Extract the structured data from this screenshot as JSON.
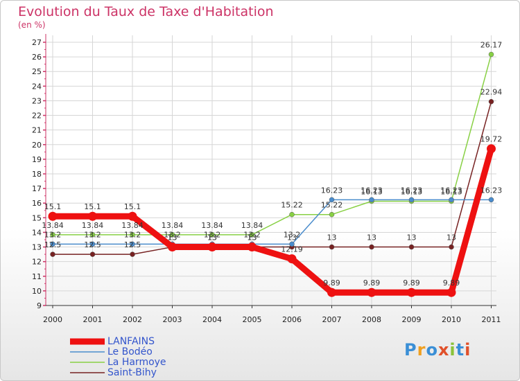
{
  "header": {
    "title": "Evolution du Taux de Taxe d'Habitation",
    "subtitle": "(en %)"
  },
  "chart_data": {
    "type": "line",
    "title": "Evolution du Taux de Taxe d'Habitation",
    "ylabel": "(en %)",
    "xlabel": "",
    "grid": true,
    "ylim": [
      9,
      27
    ],
    "y_ticks": [
      "9",
      "10",
      "11",
      "12",
      "13",
      "14",
      "15",
      "16",
      "17",
      "18",
      "19",
      "20",
      "21",
      "22",
      "23",
      "24",
      "25",
      "26",
      "27"
    ],
    "categories": [
      "2000",
      "2001",
      "2002",
      "2003",
      "2004",
      "2005",
      "2006",
      "2007",
      "2008",
      "2009",
      "2010",
      "2011"
    ],
    "series": [
      {
        "name": "LANFAINS",
        "color": "#ee1111",
        "values": [
          15.1,
          15.1,
          15.1,
          13,
          13,
          13,
          12.19,
          9.89,
          9.89,
          9.89,
          9.89,
          19.72
        ],
        "labels": [
          "15.1",
          "15.1",
          "15.1",
          "13",
          "13",
          "13",
          "12.19",
          "9.89",
          "9.89",
          "9.89",
          "9.89",
          "19.72"
        ]
      },
      {
        "name": "Le Bodéo",
        "color": "#4a8ccc",
        "values": [
          13.2,
          13.2,
          13.2,
          13.2,
          13.2,
          13.2,
          13.2,
          16.23,
          16.23,
          16.23,
          16.23,
          16.23
        ],
        "labels": [
          "13.2",
          "13.2",
          "13.2",
          "13.2",
          "13.2",
          "13.2",
          "13.2",
          "16.23",
          "16.23",
          "16.23",
          "16.23",
          "16.23"
        ]
      },
      {
        "name": "La Harmoye",
        "color": "#88d044",
        "values": [
          13.84,
          13.84,
          13.84,
          13.84,
          13.84,
          13.84,
          15.22,
          15.22,
          16.13,
          16.13,
          16.13,
          26.17
        ],
        "labels": [
          "13.84",
          "13.84",
          "13.84",
          "13.84",
          "13.84",
          "13.84",
          "15.22",
          "15.22",
          "16.13",
          "16.13",
          "16.13",
          "26.17"
        ]
      },
      {
        "name": "Saint-Bihy",
        "color": "#772222",
        "values": [
          12.5,
          12.5,
          12.5,
          13,
          13,
          13,
          13,
          13,
          13,
          13,
          13,
          22.94
        ],
        "labels": [
          "12.5",
          "12.5",
          "12.5",
          "13",
          "13",
          "13",
          "13",
          "13",
          "13",
          "13",
          "13",
          "22.94"
        ]
      }
    ],
    "legend": "bottom-left"
  },
  "logo": {
    "text": "Proxiti"
  }
}
